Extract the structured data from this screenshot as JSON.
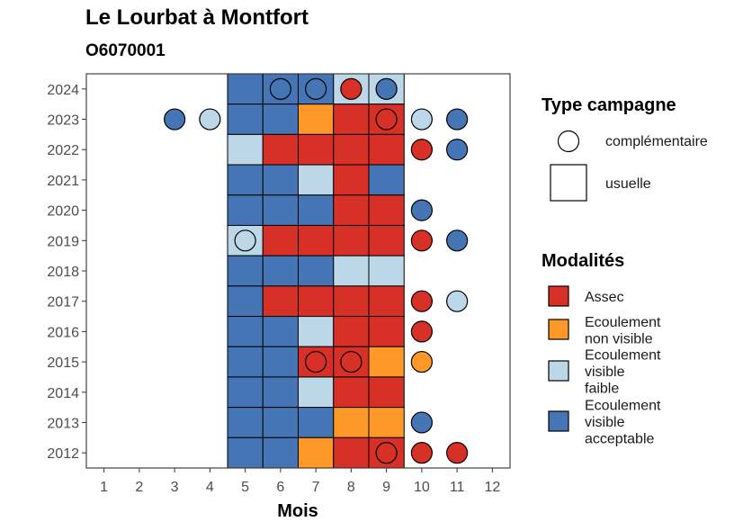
{
  "chart_data": {
    "type": "heatmap",
    "title": "Le Lourbat à Montfort",
    "subtitle": "O6070001",
    "xlabel": "Mois",
    "ylabel": "",
    "x_ticks": [
      1,
      2,
      3,
      4,
      5,
      6,
      7,
      8,
      9,
      10,
      11,
      12
    ],
    "y_ticks": [
      2012,
      2013,
      2014,
      2015,
      2016,
      2017,
      2018,
      2019,
      2020,
      2021,
      2022,
      2023,
      2024
    ],
    "xlim": [
      0.5,
      12.5
    ],
    "ylim": [
      2011.5,
      2024.5
    ],
    "grid": false,
    "colors": {
      "Assec": "#d73027",
      "Ecoulement non visible": "#fe9929",
      "Ecoulement visible faible": "#bcd7e8",
      "Ecoulement visible acceptable": "#4575b4"
    },
    "legend_campagne": {
      "title": "Type campagne",
      "items": [
        {
          "label": "complémentaire",
          "shape": "circle"
        },
        {
          "label": "usuelle",
          "shape": "square"
        }
      ]
    },
    "legend_modalites": {
      "title": "Modalités",
      "items": [
        {
          "key": "Assec",
          "lines": [
            "Assec"
          ]
        },
        {
          "key": "Ecoulement non visible",
          "lines": [
            "Ecoulement",
            "non visible"
          ]
        },
        {
          "key": "Ecoulement visible faible",
          "lines": [
            "Ecoulement",
            "visible",
            "faible"
          ]
        },
        {
          "key": "Ecoulement visible acceptable",
          "lines": [
            "Ecoulement",
            "visible",
            "acceptable"
          ]
        }
      ]
    },
    "usuelle": [
      {
        "year": 2024,
        "month": 5,
        "modalite": "Ecoulement visible acceptable"
      },
      {
        "year": 2024,
        "month": 6,
        "modalite": "Ecoulement visible acceptable"
      },
      {
        "year": 2024,
        "month": 7,
        "modalite": "Ecoulement visible acceptable"
      },
      {
        "year": 2024,
        "month": 8,
        "modalite": "Ecoulement visible faible"
      },
      {
        "year": 2024,
        "month": 9,
        "modalite": "Ecoulement visible faible"
      },
      {
        "year": 2023,
        "month": 5,
        "modalite": "Ecoulement visible acceptable"
      },
      {
        "year": 2023,
        "month": 6,
        "modalite": "Ecoulement visible acceptable"
      },
      {
        "year": 2023,
        "month": 7,
        "modalite": "Ecoulement non visible"
      },
      {
        "year": 2023,
        "month": 8,
        "modalite": "Assec"
      },
      {
        "year": 2023,
        "month": 9,
        "modalite": "Assec"
      },
      {
        "year": 2022,
        "month": 5,
        "modalite": "Ecoulement visible faible"
      },
      {
        "year": 2022,
        "month": 6,
        "modalite": "Assec"
      },
      {
        "year": 2022,
        "month": 7,
        "modalite": "Assec"
      },
      {
        "year": 2022,
        "month": 8,
        "modalite": "Assec"
      },
      {
        "year": 2022,
        "month": 9,
        "modalite": "Assec"
      },
      {
        "year": 2021,
        "month": 5,
        "modalite": "Ecoulement visible acceptable"
      },
      {
        "year": 2021,
        "month": 6,
        "modalite": "Ecoulement visible acceptable"
      },
      {
        "year": 2021,
        "month": 7,
        "modalite": "Ecoulement visible faible"
      },
      {
        "year": 2021,
        "month": 8,
        "modalite": "Assec"
      },
      {
        "year": 2021,
        "month": 9,
        "modalite": "Ecoulement visible acceptable"
      },
      {
        "year": 2020,
        "month": 5,
        "modalite": "Ecoulement visible acceptable"
      },
      {
        "year": 2020,
        "month": 6,
        "modalite": "Ecoulement visible acceptable"
      },
      {
        "year": 2020,
        "month": 7,
        "modalite": "Ecoulement visible acceptable"
      },
      {
        "year": 2020,
        "month": 8,
        "modalite": "Assec"
      },
      {
        "year": 2020,
        "month": 9,
        "modalite": "Assec"
      },
      {
        "year": 2019,
        "month": 5,
        "modalite": "Ecoulement visible faible"
      },
      {
        "year": 2019,
        "month": 6,
        "modalite": "Assec"
      },
      {
        "year": 2019,
        "month": 7,
        "modalite": "Assec"
      },
      {
        "year": 2019,
        "month": 8,
        "modalite": "Assec"
      },
      {
        "year": 2019,
        "month": 9,
        "modalite": "Assec"
      },
      {
        "year": 2018,
        "month": 5,
        "modalite": "Ecoulement visible acceptable"
      },
      {
        "year": 2018,
        "month": 6,
        "modalite": "Ecoulement visible acceptable"
      },
      {
        "year": 2018,
        "month": 7,
        "modalite": "Ecoulement visible acceptable"
      },
      {
        "year": 2018,
        "month": 8,
        "modalite": "Ecoulement visible faible"
      },
      {
        "year": 2018,
        "month": 9,
        "modalite": "Ecoulement visible faible"
      },
      {
        "year": 2017,
        "month": 5,
        "modalite": "Ecoulement visible acceptable"
      },
      {
        "year": 2017,
        "month": 6,
        "modalite": "Assec"
      },
      {
        "year": 2017,
        "month": 7,
        "modalite": "Assec"
      },
      {
        "year": 2017,
        "month": 8,
        "modalite": "Assec"
      },
      {
        "year": 2017,
        "month": 9,
        "modalite": "Assec"
      },
      {
        "year": 2016,
        "month": 5,
        "modalite": "Ecoulement visible acceptable"
      },
      {
        "year": 2016,
        "month": 6,
        "modalite": "Ecoulement visible acceptable"
      },
      {
        "year": 2016,
        "month": 7,
        "modalite": "Ecoulement visible faible"
      },
      {
        "year": 2016,
        "month": 8,
        "modalite": "Assec"
      },
      {
        "year": 2016,
        "month": 9,
        "modalite": "Assec"
      },
      {
        "year": 2015,
        "month": 5,
        "modalite": "Ecoulement visible acceptable"
      },
      {
        "year": 2015,
        "month": 6,
        "modalite": "Ecoulement visible acceptable"
      },
      {
        "year": 2015,
        "month": 7,
        "modalite": "Assec"
      },
      {
        "year": 2015,
        "month": 8,
        "modalite": "Assec"
      },
      {
        "year": 2015,
        "month": 9,
        "modalite": "Ecoulement non visible"
      },
      {
        "year": 2014,
        "month": 5,
        "modalite": "Ecoulement visible acceptable"
      },
      {
        "year": 2014,
        "month": 6,
        "modalite": "Ecoulement visible acceptable"
      },
      {
        "year": 2014,
        "month": 7,
        "modalite": "Ecoulement visible faible"
      },
      {
        "year": 2014,
        "month": 8,
        "modalite": "Assec"
      },
      {
        "year": 2014,
        "month": 9,
        "modalite": "Assec"
      },
      {
        "year": 2013,
        "month": 5,
        "modalite": "Ecoulement visible acceptable"
      },
      {
        "year": 2013,
        "month": 6,
        "modalite": "Ecoulement visible acceptable"
      },
      {
        "year": 2013,
        "month": 7,
        "modalite": "Ecoulement visible acceptable"
      },
      {
        "year": 2013,
        "month": 8,
        "modalite": "Ecoulement non visible"
      },
      {
        "year": 2013,
        "month": 9,
        "modalite": "Ecoulement non visible"
      },
      {
        "year": 2012,
        "month": 5,
        "modalite": "Ecoulement visible acceptable"
      },
      {
        "year": 2012,
        "month": 6,
        "modalite": "Ecoulement visible acceptable"
      },
      {
        "year": 2012,
        "month": 7,
        "modalite": "Ecoulement non visible"
      },
      {
        "year": 2012,
        "month": 8,
        "modalite": "Assec"
      },
      {
        "year": 2012,
        "month": 9,
        "modalite": "Assec"
      }
    ],
    "complementaire": [
      {
        "year": 2024,
        "month": 6,
        "modalite": "Ecoulement visible acceptable"
      },
      {
        "year": 2024,
        "month": 7,
        "modalite": "Ecoulement visible acceptable"
      },
      {
        "year": 2024,
        "month": 8,
        "modalite": "Assec"
      },
      {
        "year": 2024,
        "month": 9,
        "modalite": "Ecoulement visible acceptable"
      },
      {
        "year": 2023,
        "month": 3,
        "modalite": "Ecoulement visible acceptable"
      },
      {
        "year": 2023,
        "month": 4,
        "modalite": "Ecoulement visible faible"
      },
      {
        "year": 2023,
        "month": 9,
        "modalite": "Assec"
      },
      {
        "year": 2023,
        "month": 10,
        "modalite": "Ecoulement visible faible"
      },
      {
        "year": 2023,
        "month": 11,
        "modalite": "Ecoulement visible acceptable"
      },
      {
        "year": 2022,
        "month": 10,
        "modalite": "Assec"
      },
      {
        "year": 2022,
        "month": 11,
        "modalite": "Ecoulement visible acceptable"
      },
      {
        "year": 2020,
        "month": 10,
        "modalite": "Ecoulement visible acceptable"
      },
      {
        "year": 2019,
        "month": 5,
        "modalite": "Ecoulement visible faible"
      },
      {
        "year": 2019,
        "month": 10,
        "modalite": "Assec"
      },
      {
        "year": 2019,
        "month": 11,
        "modalite": "Ecoulement visible acceptable"
      },
      {
        "year": 2017,
        "month": 10,
        "modalite": "Assec"
      },
      {
        "year": 2017,
        "month": 11,
        "modalite": "Ecoulement visible faible"
      },
      {
        "year": 2016,
        "month": 10,
        "modalite": "Assec"
      },
      {
        "year": 2015,
        "month": 7,
        "modalite": "Assec"
      },
      {
        "year": 2015,
        "month": 8,
        "modalite": "Assec"
      },
      {
        "year": 2015,
        "month": 10,
        "modalite": "Ecoulement non visible"
      },
      {
        "year": 2013,
        "month": 10,
        "modalite": "Ecoulement visible acceptable"
      },
      {
        "year": 2012,
        "month": 9,
        "modalite": "Assec"
      },
      {
        "year": 2012,
        "month": 10,
        "modalite": "Assec"
      },
      {
        "year": 2012,
        "month": 11,
        "modalite": "Assec"
      }
    ]
  }
}
